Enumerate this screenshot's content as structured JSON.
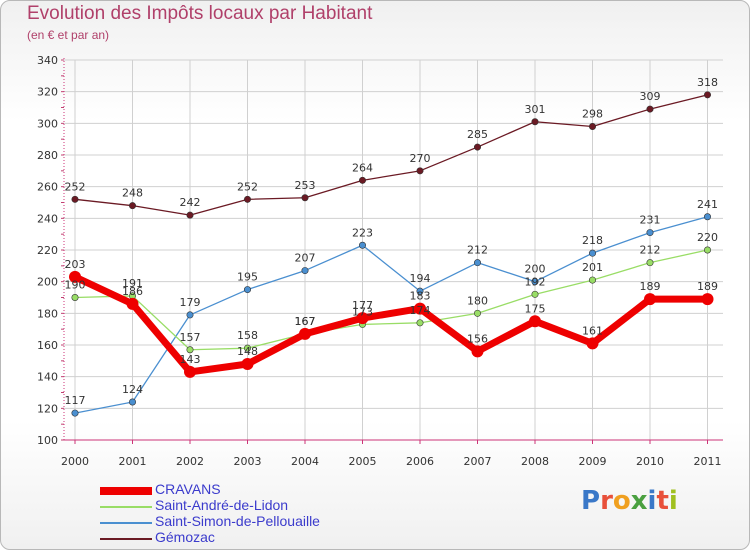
{
  "title": "Evolution des Impôts locaux par Habitant",
  "subtitle": "(en € et par an)",
  "logo": {
    "letters": [
      "P",
      "r",
      "o",
      "x",
      "i",
      "t",
      "i"
    ],
    "colors": [
      "#3a78c8",
      "#e8503a",
      "#f0a020",
      "#4aa040",
      "#3a78c8",
      "#e8503a",
      "#a0c020"
    ]
  },
  "chart_data": {
    "type": "line",
    "title": "Evolution des Impôts locaux par Habitant",
    "subtitle": "(en € et par an)",
    "xlabel": "",
    "ylabel": "",
    "ylim": [
      100,
      340
    ],
    "yticks": [
      100,
      120,
      140,
      160,
      180,
      200,
      220,
      240,
      260,
      280,
      300,
      320,
      340
    ],
    "categories": [
      "2000",
      "2001",
      "2002",
      "2003",
      "2004",
      "2005",
      "2006",
      "2007",
      "2008",
      "2009",
      "2010",
      "2011"
    ],
    "grid": true,
    "legend_position": "bottom-left",
    "series": [
      {
        "name": "Gémozac",
        "color": "#6b1a24",
        "values": [
          252,
          248,
          242,
          252,
          253,
          264,
          270,
          285,
          301,
          298,
          309,
          318
        ]
      },
      {
        "name": "Saint-Simon-de-Pellouaille",
        "color": "#4a8fd0",
        "values": [
          117,
          124,
          179,
          195,
          207,
          223,
          194,
          212,
          200,
          218,
          231,
          241
        ]
      },
      {
        "name": "Saint-André-de-Lidon",
        "color": "#99dd66",
        "values": [
          190,
          191,
          157,
          158,
          167,
          173,
          174,
          180,
          192,
          201,
          212,
          220
        ]
      },
      {
        "name": "CRAVANS",
        "color": "#ee0000",
        "values": [
          203,
          186,
          143,
          148,
          167,
          177,
          183,
          156,
          175,
          161,
          189,
          189
        ]
      }
    ]
  }
}
